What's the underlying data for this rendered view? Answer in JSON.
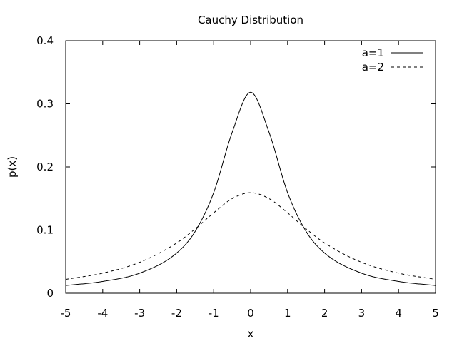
{
  "chart_data": {
    "type": "line",
    "title": "Cauchy Distribution",
    "xlabel": "x",
    "ylabel": "p(x)",
    "xlim": [
      -5,
      5
    ],
    "ylim": [
      0,
      0.4
    ],
    "grid": false,
    "legend_position": "top-right",
    "x_ticks": [
      "-5",
      "-4",
      "-3",
      "-2",
      "-1",
      "0",
      "1",
      "2",
      "3",
      "4",
      "5"
    ],
    "y_ticks": [
      "0",
      "0.1",
      "0.2",
      "0.3",
      "0.4"
    ],
    "x": [
      -5,
      -4,
      -3,
      -2,
      -1.5,
      -1,
      -0.5,
      0,
      0.5,
      1,
      1.5,
      2,
      3,
      4,
      5
    ],
    "series": [
      {
        "name": "a=1",
        "style": "solid",
        "color": "#000000",
        "values": [
          0.0122,
          0.0187,
          0.0318,
          0.0637,
          0.0979,
          0.1592,
          0.2546,
          0.3183,
          0.2546,
          0.1592,
          0.0979,
          0.0637,
          0.0318,
          0.0187,
          0.0122
        ]
      },
      {
        "name": "a=2",
        "style": "dashed",
        "color": "#000000",
        "values": [
          0.022,
          0.0318,
          0.049,
          0.0796,
          0.1019,
          0.1273,
          0.1498,
          0.1592,
          0.1498,
          0.1273,
          0.1019,
          0.0796,
          0.049,
          0.0318,
          0.022
        ]
      }
    ]
  }
}
